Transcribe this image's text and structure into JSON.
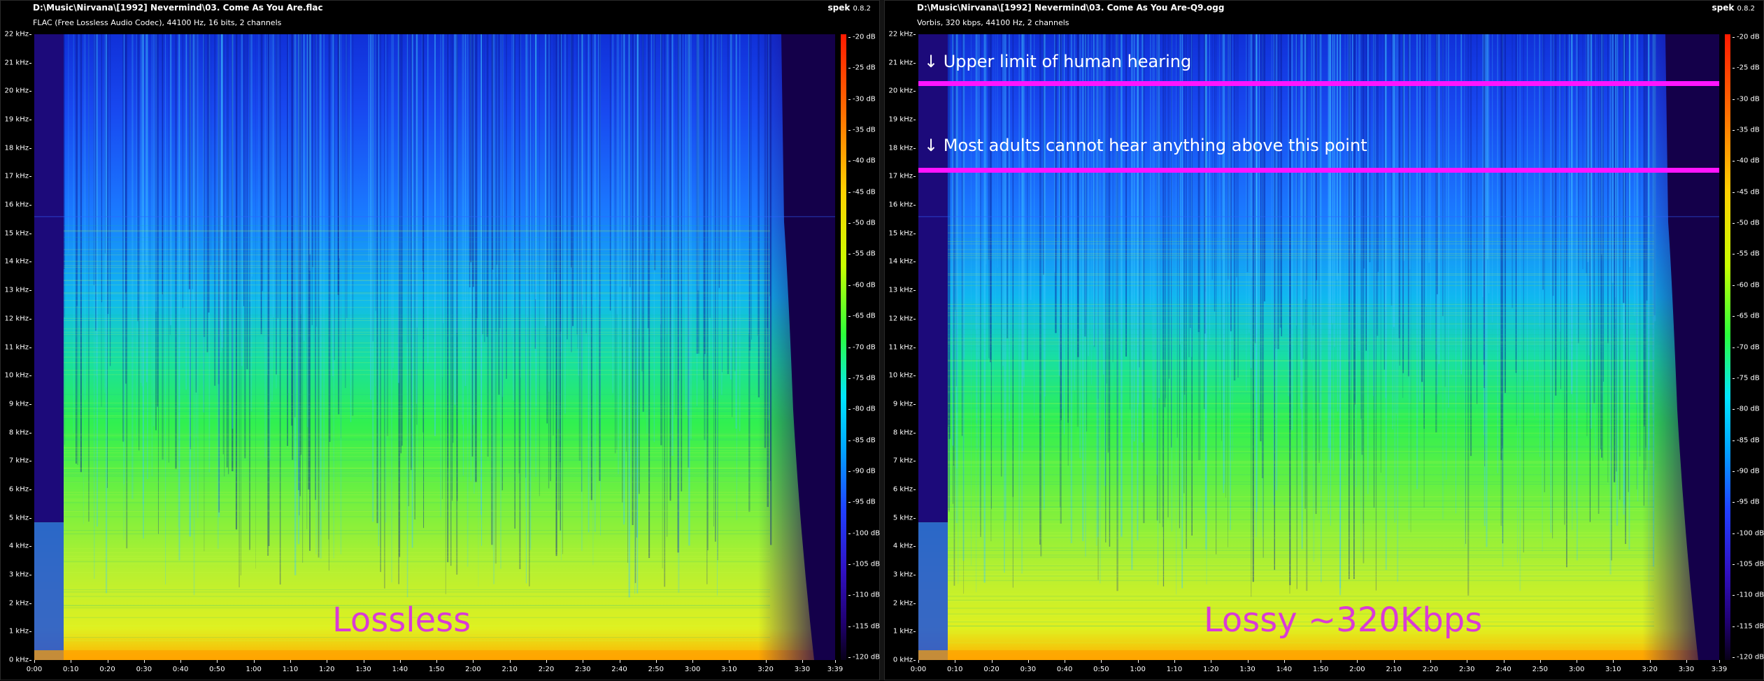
{
  "panels": [
    {
      "title": "D:\\Music\\Nirvana\\[1992] Nevermind\\03. Come As You Are.flac",
      "subtitle": "FLAC (Free Lossless Audio Codec), 44100 Hz, 16 bits, 2 channels",
      "app_name": "spek",
      "app_version": "0.8.2",
      "overlay_label": "Lossless"
    },
    {
      "title": "D:\\Music\\Nirvana\\[1992] Nevermind\\03. Come As You Are-Q9.ogg",
      "subtitle": "Vorbis, 320 kbps, 44100 Hz, 2 channels",
      "app_name": "spek",
      "app_version": "0.8.2",
      "overlay_label": "Lossy ~320Kbps",
      "annotations": [
        "↓ Upper limit of human hearing",
        "↓ Most adults cannot hear anything above this point"
      ]
    }
  ],
  "freq_labels": [
    "22 kHz",
    "21 kHz",
    "20 kHz",
    "19 kHz",
    "18 kHz",
    "17 kHz",
    "16 kHz",
    "15 kHz",
    "14 kHz",
    "13 kHz",
    "12 kHz",
    "11 kHz",
    "10 kHz",
    "9 kHz",
    "8 kHz",
    "7 kHz",
    "6 kHz",
    "5 kHz",
    "4 kHz",
    "3 kHz",
    "2 kHz",
    "1 kHz",
    "0 kHz"
  ],
  "time_labels": [
    "0:00",
    "0:10",
    "0:20",
    "0:30",
    "0:40",
    "0:50",
    "1:00",
    "1:10",
    "1:20",
    "1:30",
    "1:40",
    "1:50",
    "2:00",
    "2:10",
    "2:20",
    "2:30",
    "2:40",
    "2:50",
    "3:00",
    "3:10",
    "3:20",
    "3:30",
    "3:39"
  ],
  "db_labels": [
    "-20 dB",
    "-25 dB",
    "-30 dB",
    "-35 dB",
    "-40 dB",
    "-45 dB",
    "-50 dB",
    "-55 dB",
    "-60 dB",
    "-65 dB",
    "-70 dB",
    "-75 dB",
    "-80 dB",
    "-85 dB",
    "-90 dB",
    "-95 dB",
    "-100 dB",
    "-105 dB",
    "-110 dB",
    "-115 dB",
    "-120 dB"
  ],
  "chart_data": [
    {
      "type": "heatmap",
      "title": "D:\\Music\\Nirvana\\[1992] Nevermind\\03. Come As You Are.flac",
      "y_range_khz": [
        0,
        22
      ],
      "x_range": [
        "0:00",
        "3:39"
      ],
      "color_range_db": [
        -120,
        -20
      ],
      "energy_cutoff_khz": 22,
      "track_end": "3:30"
    },
    {
      "type": "heatmap",
      "title": "D:\\Music\\Nirvana\\[1992] Nevermind\\03. Come As You Are-Q9.ogg",
      "y_range_khz": [
        0,
        22
      ],
      "x_range": [
        "0:00",
        "3:39"
      ],
      "color_range_db": [
        -120,
        -20
      ],
      "energy_cutoff_khz": 22,
      "track_end": "3:30",
      "marked_frequencies_khz": [
        20.3,
        17.3
      ]
    }
  ],
  "colors": {
    "overlay_text": "#d93ad6",
    "marker_line": "#ff14ff"
  }
}
